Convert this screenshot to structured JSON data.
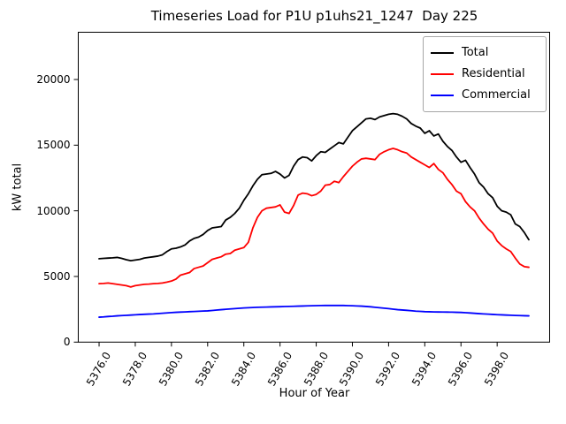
{
  "figure": {
    "title": "Timeseries Load for P1U p1uhs21_1247  Day 225",
    "xlabel": "Hour of Year",
    "ylabel": "kW total"
  },
  "legend": [
    {
      "label": "Total",
      "color": "#000000"
    },
    {
      "label": "Residential",
      "color": "#ff0000"
    },
    {
      "label": "Commercial",
      "color": "#0000ff"
    }
  ],
  "axes": {
    "x_tick_values": [
      5376,
      5378,
      5380,
      5382,
      5384,
      5386,
      5388,
      5390,
      5392,
      5394,
      5396,
      5398
    ],
    "x_tick_labels": [
      "5376.0",
      "5378.0",
      "5380.0",
      "5382.0",
      "5384.0",
      "5386.0",
      "5388.0",
      "5390.0",
      "5392.0",
      "5394.0",
      "5396.0",
      "5398.0"
    ],
    "y_tick_values": [
      0,
      5000,
      10000,
      15000,
      20000
    ],
    "y_tick_labels": [
      "0",
      "5000",
      "10000",
      "15000",
      "20000"
    ]
  },
  "chart_data": {
    "type": "line",
    "title": "Timeseries Load for P1U p1uhs21_1247  Day 225",
    "xlabel": "Hour of Year",
    "ylabel": "kW total",
    "xlim": [
      5374.85,
      5400.9
    ],
    "ylim": [
      0,
      23600
    ],
    "grid": false,
    "legend_position": "upper right",
    "x": [
      5376.0,
      5376.25,
      5376.5,
      5376.75,
      5377.0,
      5377.25,
      5377.5,
      5377.75,
      5378.0,
      5378.25,
      5378.5,
      5378.75,
      5379.0,
      5379.25,
      5379.5,
      5379.75,
      5380.0,
      5380.25,
      5380.5,
      5380.75,
      5381.0,
      5381.25,
      5381.5,
      5381.75,
      5382.0,
      5382.25,
      5382.5,
      5382.75,
      5383.0,
      5383.25,
      5383.5,
      5383.75,
      5384.0,
      5384.25,
      5384.5,
      5384.75,
      5385.0,
      5385.25,
      5385.5,
      5385.75,
      5386.0,
      5386.25,
      5386.5,
      5386.75,
      5387.0,
      5387.25,
      5387.5,
      5387.75,
      5388.0,
      5388.25,
      5388.5,
      5388.75,
      5389.0,
      5389.25,
      5389.5,
      5389.75,
      5390.0,
      5390.25,
      5390.5,
      5390.75,
      5391.0,
      5391.25,
      5391.5,
      5391.75,
      5392.0,
      5392.25,
      5392.5,
      5392.75,
      5393.0,
      5393.25,
      5393.5,
      5393.75,
      5394.0,
      5394.25,
      5394.5,
      5394.75,
      5395.0,
      5395.25,
      5395.5,
      5395.75,
      5396.0,
      5396.25,
      5396.5,
      5396.75,
      5397.0,
      5397.25,
      5397.5,
      5397.75,
      5398.0,
      5398.25,
      5398.5,
      5398.75,
      5399.0,
      5399.25,
      5399.5,
      5399.75
    ],
    "series": [
      {
        "name": "Total",
        "color": "#000000",
        "values": [
          6350,
          6380,
          6400,
          6420,
          6450,
          6380,
          6280,
          6200,
          6250,
          6300,
          6400,
          6450,
          6500,
          6550,
          6650,
          6900,
          7100,
          7150,
          7250,
          7400,
          7700,
          7900,
          8000,
          8200,
          8500,
          8700,
          8750,
          8800,
          9300,
          9500,
          9800,
          10200,
          10800,
          11300,
          11900,
          12400,
          12750,
          12800,
          12850,
          13000,
          12800,
          12500,
          12700,
          13400,
          13900,
          14100,
          14050,
          13800,
          14200,
          14500,
          14450,
          14700,
          14950,
          15200,
          15100,
          15600,
          16100,
          16400,
          16700,
          17000,
          17050,
          16950,
          17150,
          17250,
          17350,
          17400,
          17350,
          17200,
          17000,
          16650,
          16450,
          16300,
          15900,
          16100,
          15700,
          15850,
          15300,
          14900,
          14600,
          14100,
          13700,
          13850,
          13300,
          12800,
          12150,
          11800,
          11300,
          11000,
          10350,
          10000,
          9900,
          9700,
          9000,
          8800,
          8350,
          7800
        ]
      },
      {
        "name": "Residential",
        "color": "#ff0000",
        "values": [
          4450,
          4470,
          4500,
          4450,
          4400,
          4350,
          4300,
          4200,
          4300,
          4350,
          4400,
          4420,
          4450,
          4470,
          4500,
          4570,
          4650,
          4800,
          5100,
          5200,
          5300,
          5600,
          5700,
          5800,
          6050,
          6300,
          6400,
          6500,
          6700,
          6750,
          7000,
          7100,
          7200,
          7600,
          8700,
          9500,
          10000,
          10200,
          10250,
          10300,
          10450,
          9900,
          9800,
          10400,
          11200,
          11350,
          11300,
          11150,
          11250,
          11500,
          11950,
          12000,
          12250,
          12150,
          12600,
          13000,
          13400,
          13700,
          13950,
          14000,
          13950,
          13900,
          14300,
          14500,
          14650,
          14750,
          14650,
          14500,
          14400,
          14100,
          13900,
          13700,
          13500,
          13300,
          13600,
          13150,
          12900,
          12400,
          12000,
          11500,
          11300,
          10700,
          10300,
          10000,
          9450,
          9000,
          8600,
          8300,
          7700,
          7350,
          7100,
          6900,
          6400,
          5950,
          5750,
          5700
        ]
      },
      {
        "name": "Commercial",
        "color": "#0000ff",
        "values": [
          1900,
          1920,
          1950,
          1970,
          2000,
          2020,
          2040,
          2060,
          2080,
          2100,
          2120,
          2135,
          2150,
          2175,
          2200,
          2225,
          2250,
          2270,
          2285,
          2300,
          2320,
          2335,
          2350,
          2365,
          2380,
          2410,
          2440,
          2470,
          2500,
          2525,
          2550,
          2575,
          2600,
          2620,
          2635,
          2650,
          2660,
          2670,
          2680,
          2690,
          2700,
          2710,
          2720,
          2730,
          2740,
          2750,
          2760,
          2770,
          2780,
          2785,
          2790,
          2790,
          2790,
          2790,
          2790,
          2780,
          2770,
          2755,
          2740,
          2715,
          2690,
          2655,
          2620,
          2585,
          2550,
          2510,
          2470,
          2445,
          2420,
          2390,
          2360,
          2340,
          2320,
          2310,
          2300,
          2295,
          2290,
          2285,
          2280,
          2270,
          2260,
          2240,
          2220,
          2195,
          2170,
          2150,
          2130,
          2110,
          2090,
          2075,
          2060,
          2045,
          2030,
          2020,
          2010,
          2000
        ]
      }
    ]
  }
}
